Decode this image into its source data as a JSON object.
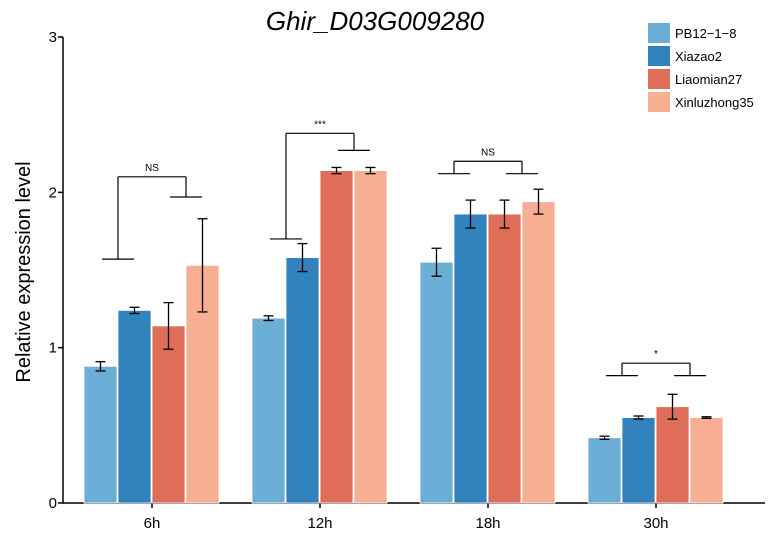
{
  "chart_data": {
    "type": "bar",
    "title": "Ghir_D03G009280",
    "xlabel": "",
    "ylabel": "Relative expression level",
    "ylim": [
      0,
      3
    ],
    "yticks": [
      "0",
      "1",
      "2",
      "3"
    ],
    "categories": [
      "6h",
      "12h",
      "18h",
      "30h"
    ],
    "series": [
      {
        "name": "PB12−1−8",
        "color": "#6baed6",
        "values": [
          0.88,
          1.19,
          1.55,
          0.42
        ],
        "errors": [
          0.03,
          0.015,
          0.09,
          0.01
        ]
      },
      {
        "name": "Xiazao2",
        "color": "#3182bd",
        "values": [
          1.24,
          1.58,
          1.86,
          0.55
        ],
        "errors": [
          0.02,
          0.09,
          0.09,
          0.01
        ]
      },
      {
        "name": "Liaomian27",
        "color": "#de6e58",
        "values": [
          1.14,
          2.14,
          1.86,
          0.62
        ],
        "errors": [
          0.15,
          0.02,
          0.09,
          0.08
        ]
      },
      {
        "name": "Xinluzhong35",
        "color": "#f7ae92",
        "values": [
          1.53,
          2.14,
          1.94,
          0.55
        ],
        "errors": [
          0.3,
          0.02,
          0.08,
          0.005
        ]
      }
    ],
    "significance": [
      {
        "category": "6h",
        "label": "NS",
        "left_y": 1.57,
        "right_y": 1.97,
        "top_y": 2.1
      },
      {
        "category": "12h",
        "label": "***",
        "left_y": 1.7,
        "right_y": 2.27,
        "top_y": 2.38
      },
      {
        "category": "18h",
        "label": "NS",
        "left_y": 2.12,
        "right_y": 2.12,
        "top_y": 2.2
      },
      {
        "category": "30h",
        "label": "*",
        "left_y": 0.82,
        "right_y": 0.82,
        "top_y": 0.9
      }
    ],
    "legend_position": "top-right",
    "grid": false
  }
}
